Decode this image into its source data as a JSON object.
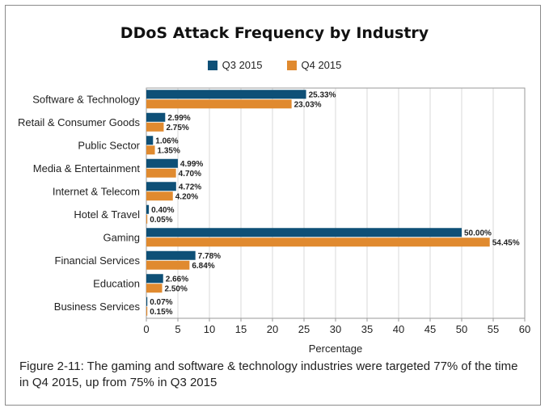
{
  "chart_data": {
    "type": "bar",
    "orientation": "horizontal",
    "title": "DDoS Attack Frequency by Industry",
    "xlabel": "Percentage",
    "ylabel": "",
    "xlim": [
      0,
      60
    ],
    "xticks": [
      0,
      5,
      10,
      15,
      20,
      25,
      30,
      35,
      40,
      45,
      50,
      55,
      60
    ],
    "grid": true,
    "legend_position": "top-center",
    "categories": [
      "Software & Technology",
      "Retail & Consumer Goods",
      "Public Sector",
      "Media & Entertainment",
      "Internet & Telecom",
      "Hotel & Travel",
      "Gaming",
      "Financial Services",
      "Education",
      "Business Services"
    ],
    "series": [
      {
        "name": "Q3 2015",
        "color": "#0e5077",
        "values": [
          25.33,
          2.99,
          1.06,
          4.99,
          4.72,
          0.4,
          50.0,
          7.78,
          2.66,
          0.07
        ],
        "labels": [
          "25.33%",
          "2.99%",
          "1.06%",
          "4.99%",
          "4.72%",
          "0.40%",
          "50.00%",
          "7.78%",
          "2.66%",
          "0.07%"
        ]
      },
      {
        "name": "Q4 2015",
        "color": "#e08a2f",
        "values": [
          23.03,
          2.75,
          1.35,
          4.7,
          4.2,
          0.05,
          54.45,
          6.84,
          2.5,
          0.15
        ],
        "labels": [
          "23.03%",
          "2.75%",
          "1.35%",
          "4.70%",
          "4.20%",
          "0.05%",
          "54.45%",
          "6.84%",
          "2.50%",
          "0.15%"
        ]
      }
    ]
  },
  "caption": "Figure 2-11: The gaming and software & technology industries were targeted 77% of the time in Q4 2015, up from 75% in Q3 2015"
}
